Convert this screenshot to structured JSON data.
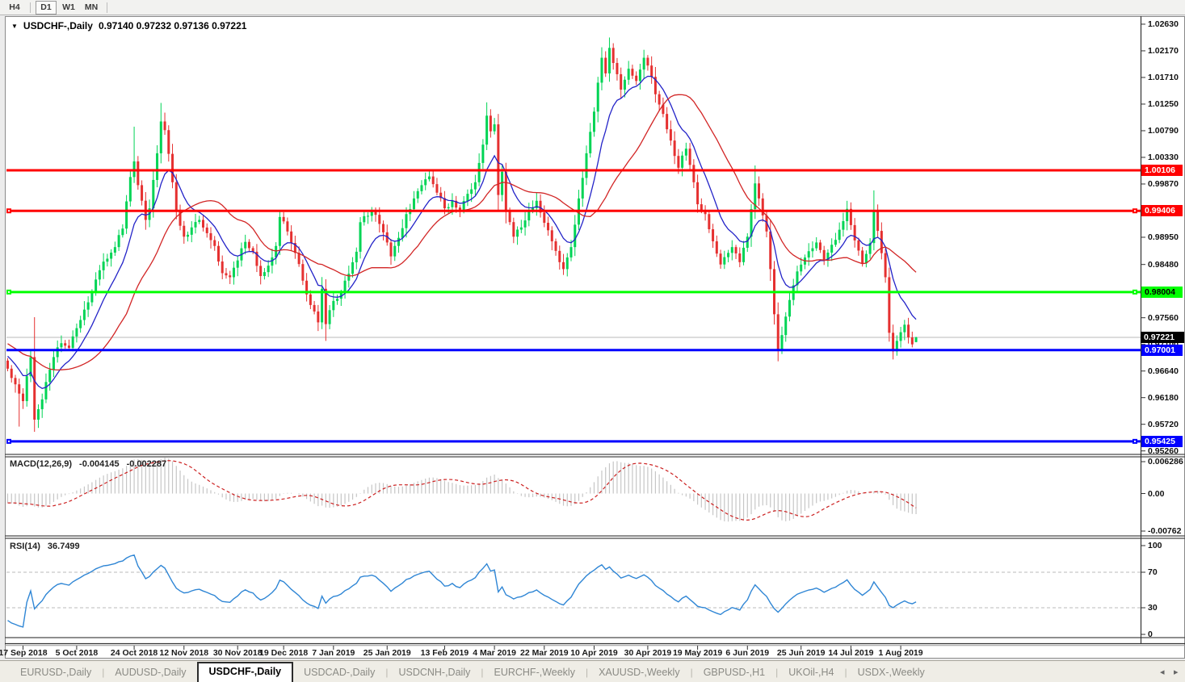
{
  "toolbar": {
    "buttons": [
      {
        "label": "H4",
        "active": false,
        "sep_after": true
      },
      {
        "label": "D1",
        "active": true,
        "sep_after": false
      },
      {
        "label": "W1",
        "active": false,
        "sep_after": false
      },
      {
        "label": "MN",
        "active": false,
        "sep_after": true
      }
    ]
  },
  "window_title": {
    "symbol": "USDCHF-,Daily",
    "quote_line": "0.97140 0.97232 0.97136 0.97221"
  },
  "price_axis": {
    "ticks": [
      "1.02630",
      "1.02170",
      "1.01710",
      "1.01250",
      "1.00790",
      "1.00330",
      "0.99870",
      "0.99410",
      "0.98950",
      "0.98480",
      "0.98010",
      "0.97560",
      "0.97100",
      "0.96640",
      "0.96180",
      "0.95720",
      "0.95260"
    ]
  },
  "macd_panel": {
    "name": "MACD(12,26,9)",
    "main_value": "-0.004145",
    "signal_value": "-0.002287",
    "axis": [
      "0.006286",
      "0.00",
      "-0.00762"
    ]
  },
  "rsi_panel": {
    "name": "RSI(14)",
    "value": "36.7499",
    "axis": [
      "100",
      "70",
      "30",
      "0"
    ]
  },
  "date_axis": {
    "labels": [
      {
        "text": "17 Sep 2018",
        "bar": 4
      },
      {
        "text": "5 Oct 2018",
        "bar": 18
      },
      {
        "text": "24 Oct 2018",
        "bar": 33
      },
      {
        "text": "12 Nov 2018",
        "bar": 46
      },
      {
        "text": "30 Nov 2018",
        "bar": 60
      },
      {
        "text": "19 Dec 2018",
        "bar": 72
      },
      {
        "text": "7 Jan 2019",
        "bar": 85
      },
      {
        "text": "25 Jan 2019",
        "bar": 99
      },
      {
        "text": "13 Feb 2019",
        "bar": 114
      },
      {
        "text": "4 Mar 2019",
        "bar": 127
      },
      {
        "text": "22 Mar 2019",
        "bar": 140
      },
      {
        "text": "10 Apr 2019",
        "bar": 153
      },
      {
        "text": "30 Apr 2019",
        "bar": 167
      },
      {
        "text": "19 May 2019",
        "bar": 180
      },
      {
        "text": "6 Jun 2019",
        "bar": 193
      },
      {
        "text": "25 Jun 2019",
        "bar": 207
      },
      {
        "text": "14 Jul 2019",
        "bar": 220
      },
      {
        "text": "1 Aug 2019",
        "bar": 233
      }
    ]
  },
  "tabs": {
    "items": [
      {
        "label": "EURUSD-,Daily",
        "active": false
      },
      {
        "label": "AUDUSD-,Daily",
        "active": false
      },
      {
        "label": "USDCHF-,Daily",
        "active": true
      },
      {
        "label": "USDCAD-,Daily",
        "active": false
      },
      {
        "label": "USDCNH-,Daily",
        "active": false
      },
      {
        "label": "EURCHF-,Weekly",
        "active": false
      },
      {
        "label": "XAUUSD-,Weekly",
        "active": false
      },
      {
        "label": "GBPUSD-,H1",
        "active": false
      },
      {
        "label": "UKOil-,H4",
        "active": false
      },
      {
        "label": "USDX-,Weekly",
        "active": false
      }
    ],
    "scroll_left_icon": "◂",
    "scroll_right_icon": "▸"
  },
  "colors": {
    "bull": "#00d455",
    "bear": "#e53030",
    "ma_fast": "#2323c8",
    "ma_slow": "#d22525",
    "macd_hist": "#c6c6c6",
    "macd_signal": "#cc2020",
    "rsi_line": "#2f86d5",
    "grid_dash": "#bbbbbb",
    "bid_line": "#b9b9b9",
    "level_red": "#ff0000",
    "level_green": "#00ff00",
    "level_blue": "#0000ff"
  },
  "chart_data": {
    "type": "candlestick",
    "symbol": "USDCHF-",
    "timeframe": "Daily",
    "quote": {
      "open": 0.9714,
      "high": 0.97232,
      "low": 0.97136,
      "close": 0.97221
    },
    "price_range_shown": [
      0.9526,
      1.0263
    ],
    "tick_step": 0.0046,
    "bars_total": 238,
    "first_open": 0.9682,
    "levels": [
      {
        "price": 1.00106,
        "label": "1.00106",
        "color": "#ff0000",
        "text_color": "#ffffff",
        "handles": false
      },
      {
        "price": 0.99406,
        "label": "0.99406",
        "color": "#ff0000",
        "text_color": "#ffffff",
        "handles": true
      },
      {
        "price": 0.98004,
        "label": "0.98004",
        "color": "#00ff00",
        "text_color": "#000000",
        "handles": true
      },
      {
        "price": 0.97001,
        "label": "0.97001",
        "color": "#0000ff",
        "text_color": "#ffffff",
        "handles": false
      },
      {
        "price": 0.95425,
        "label": "0.95425",
        "color": "#0000ff",
        "text_color": "#ffffff",
        "handles": true
      }
    ],
    "current_price": {
      "label": "0.97221",
      "price": 0.97221,
      "bg": "#000000",
      "text_color": "#ffffff"
    },
    "close_waypoints": [
      [
        0,
        0.9668
      ],
      [
        1,
        0.9652
      ],
      [
        2,
        0.9641
      ],
      [
        3,
        0.9625
      ],
      [
        4,
        0.9612
      ],
      [
        5,
        0.9655
      ],
      [
        6,
        0.9688
      ],
      [
        7,
        0.958
      ],
      [
        8,
        0.9598
      ],
      [
        9,
        0.9615
      ],
      [
        10,
        0.9645
      ],
      [
        12,
        0.9688
      ],
      [
        14,
        0.9712
      ],
      [
        16,
        0.9704
      ],
      [
        18,
        0.9738
      ],
      [
        20,
        0.977
      ],
      [
        22,
        0.98
      ],
      [
        24,
        0.9838
      ],
      [
        26,
        0.9858
      ],
      [
        28,
        0.9878
      ],
      [
        30,
        0.991
      ],
      [
        32,
        0.9999
      ],
      [
        33,
        1.0026
      ],
      [
        34,
        0.9985
      ],
      [
        36,
        0.9925
      ],
      [
        37,
        0.9945
      ],
      [
        39,
        1.004
      ],
      [
        40,
        1.0095
      ],
      [
        41,
        1.008
      ],
      [
        43,
        0.999
      ],
      [
        44,
        0.994
      ],
      [
        46,
        0.9896
      ],
      [
        48,
        0.9912
      ],
      [
        50,
        0.9925
      ],
      [
        52,
        0.9902
      ],
      [
        54,
        0.988
      ],
      [
        56,
        0.9833
      ],
      [
        58,
        0.9826
      ],
      [
        60,
        0.9855
      ],
      [
        62,
        0.9887
      ],
      [
        64,
        0.987
      ],
      [
        66,
        0.9828
      ],
      [
        68,
        0.9846
      ],
      [
        70,
        0.988
      ],
      [
        71,
        0.993
      ],
      [
        73,
        0.9905
      ],
      [
        75,
        0.9868
      ],
      [
        77,
        0.982
      ],
      [
        79,
        0.9778
      ],
      [
        81,
        0.9748
      ],
      [
        82,
        0.9806
      ],
      [
        83,
        0.9745
      ],
      [
        85,
        0.9785
      ],
      [
        87,
        0.98
      ],
      [
        89,
        0.9832
      ],
      [
        91,
        0.987
      ],
      [
        92,
        0.9921
      ],
      [
        94,
        0.9932
      ],
      [
        95,
        0.994
      ],
      [
        97,
        0.9918
      ],
      [
        99,
        0.9886
      ],
      [
        100,
        0.9862
      ],
      [
        102,
        0.9894
      ],
      [
        104,
        0.9935
      ],
      [
        106,
        0.9962
      ],
      [
        108,
        0.9985
      ],
      [
        110,
        1.0
      ],
      [
        112,
        0.9972
      ],
      [
        114,
        0.9945
      ],
      [
        116,
        0.9958
      ],
      [
        118,
        0.9942
      ],
      [
        120,
        0.997
      ],
      [
        122,
        0.999
      ],
      [
        124,
        1.0055
      ],
      [
        125,
        1.0105
      ],
      [
        126,
        1.0078
      ],
      [
        127,
        1.009
      ],
      [
        128,
        0.9968
      ],
      [
        129,
        1.0008
      ],
      [
        130,
        0.994
      ],
      [
        132,
        0.9896
      ],
      [
        134,
        0.9912
      ],
      [
        136,
        0.994
      ],
      [
        138,
        0.9958
      ],
      [
        140,
        0.992
      ],
      [
        142,
        0.9888
      ],
      [
        144,
        0.9852
      ],
      [
        145,
        0.984
      ],
      [
        147,
        0.9878
      ],
      [
        149,
        0.9962
      ],
      [
        151,
        1.004
      ],
      [
        153,
        1.0112
      ],
      [
        154,
        1.0162
      ],
      [
        155,
        1.0205
      ],
      [
        156,
        1.0178
      ],
      [
        157,
        1.0222
      ],
      [
        158,
        1.0196
      ],
      [
        160,
        1.015
      ],
      [
        162,
        1.0186
      ],
      [
        164,
        1.0165
      ],
      [
        166,
        1.0205
      ],
      [
        168,
        1.0172
      ],
      [
        169,
        1.0142
      ],
      [
        171,
        1.0108
      ],
      [
        173,
        1.0062
      ],
      [
        175,
        1.0015
      ],
      [
        177,
        1.0048
      ],
      [
        179,
        0.999
      ],
      [
        180,
        0.9952
      ],
      [
        182,
        0.9935
      ],
      [
        184,
        0.9888
      ],
      [
        186,
        0.9848
      ],
      [
        188,
        0.9868
      ],
      [
        189,
        0.9878
      ],
      [
        191,
        0.9852
      ],
      [
        193,
        0.9896
      ],
      [
        195,
        0.9988
      ],
      [
        196,
        0.9962
      ],
      [
        198,
        0.9905
      ],
      [
        199,
        0.984
      ],
      [
        200,
        0.9762
      ],
      [
        201,
        0.97
      ],
      [
        203,
        0.9758
      ],
      [
        205,
        0.9812
      ],
      [
        206,
        0.9836
      ],
      [
        208,
        0.986
      ],
      [
        210,
        0.9876
      ],
      [
        211,
        0.9886
      ],
      [
        213,
        0.9856
      ],
      [
        215,
        0.9882
      ],
      [
        217,
        0.9908
      ],
      [
        219,
        0.9944
      ],
      [
        220,
        0.9916
      ],
      [
        222,
        0.9872
      ],
      [
        223,
        0.985
      ],
      [
        225,
        0.9885
      ],
      [
        226,
        0.994
      ],
      [
        227,
        0.9906
      ],
      [
        229,
        0.9826
      ],
      [
        230,
        0.973
      ],
      [
        231,
        0.9698
      ],
      [
        232,
        0.9716
      ],
      [
        233,
        0.9731
      ],
      [
        234,
        0.9744
      ],
      [
        235,
        0.9722
      ],
      [
        236,
        0.971
      ],
      [
        237,
        0.97221
      ]
    ],
    "wick_extremes": [
      {
        "i": 3,
        "l": 0.9568
      },
      {
        "i": 7,
        "h": 0.9757,
        "l": 0.956
      },
      {
        "i": 33,
        "h": 1.0086
      },
      {
        "i": 40,
        "h": 1.0127
      },
      {
        "i": 83,
        "l": 0.9716
      },
      {
        "i": 125,
        "h": 1.0128
      },
      {
        "i": 157,
        "h": 1.024
      },
      {
        "i": 195,
        "h": 1.0019
      },
      {
        "i": 201,
        "l": 0.9694
      },
      {
        "i": 219,
        "h": 0.9952
      },
      {
        "i": 226,
        "h": 0.9976
      },
      {
        "i": 231,
        "l": 0.9684
      },
      {
        "i": 237,
        "h": 0.97232,
        "l": 0.97136
      }
    ],
    "indicators": {
      "ma_fast": {
        "type": "EMA",
        "period": 10
      },
      "ma_slow": {
        "type": "SMA",
        "period": 25
      },
      "macd": {
        "fast": 12,
        "slow": 26,
        "signal": 9,
        "main_value": -0.004145,
        "signal_value": -0.002287,
        "axis_max": 0.006286,
        "axis_min": -0.00762
      },
      "rsi": {
        "period": 14,
        "value": 36.7499,
        "levels": [
          70,
          30
        ]
      }
    }
  }
}
